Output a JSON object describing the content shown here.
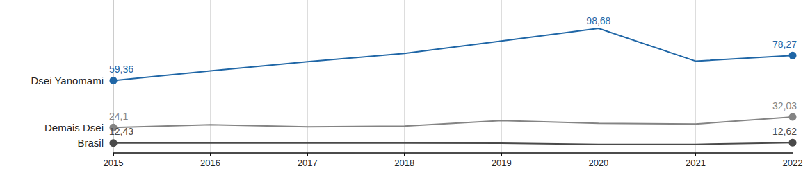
{
  "chart_data": {
    "type": "line",
    "categories": [
      "2015",
      "2016",
      "2017",
      "2018",
      "2019",
      "2020",
      "2021",
      "2022"
    ],
    "series": [
      {
        "name": "Dsei Yanomami",
        "color": "#1f66a6",
        "values": [
          59.36,
          66.7,
          73.5,
          79.8,
          89.2,
          98.68,
          74.0,
          78.27
        ],
        "value_labels": [
          "59,36",
          null,
          null,
          null,
          null,
          "98,68",
          null,
          "78,27"
        ]
      },
      {
        "name": "Demais Dsei",
        "color": "#848484",
        "values": [
          24.1,
          26.2,
          24.6,
          25.1,
          29.3,
          27.2,
          26.7,
          32.03
        ],
        "value_labels": [
          "24,1",
          null,
          null,
          null,
          null,
          null,
          null,
          "32,03"
        ]
      },
      {
        "name": "Brasil",
        "color": "#4a4a4a",
        "values": [
          12.43,
          12.4,
          12.4,
          12.4,
          12.3,
          11.4,
          11.4,
          12.62
        ],
        "value_labels": [
          "12,43",
          null,
          null,
          null,
          null,
          null,
          null,
          "12,62"
        ]
      }
    ],
    "ylim": [
      5,
      120
    ],
    "yticks": [],
    "grid": true,
    "data_labels": true,
    "tick_labels": "x",
    "marker": "circle"
  }
}
